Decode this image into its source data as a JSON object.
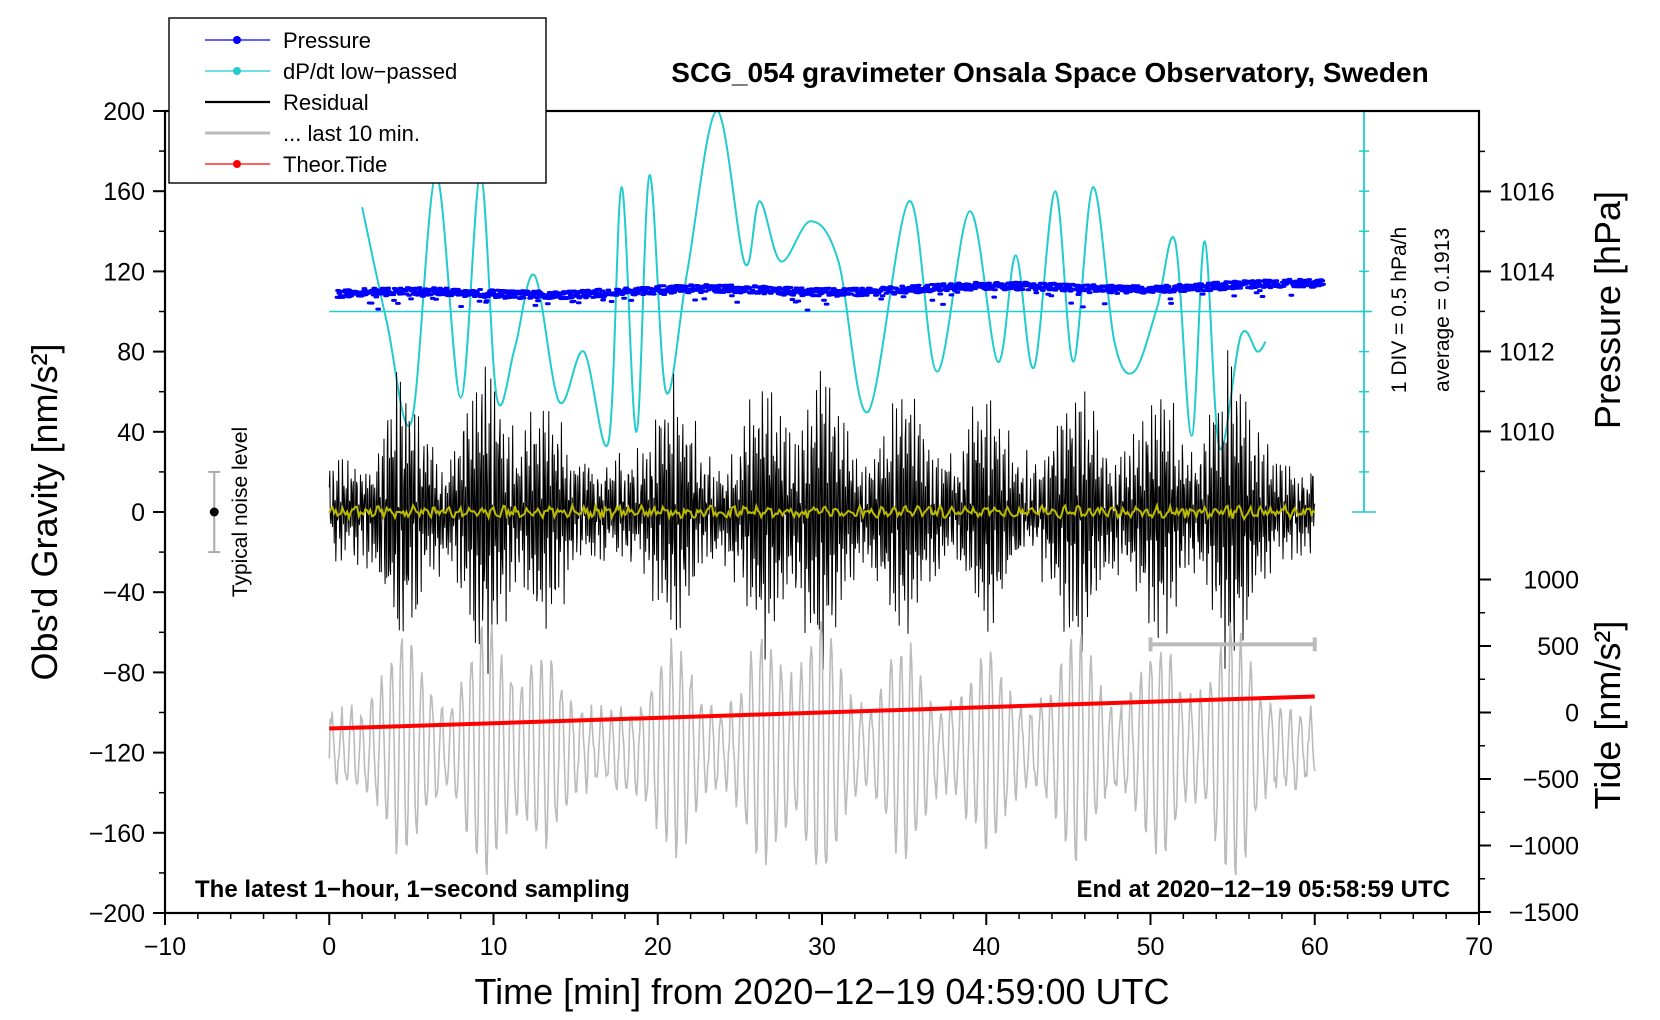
{
  "chart_data": {
    "type": "line",
    "title": "SCG_054 gravimeter Onsala Space Observatory, Sweden",
    "xlabel": "Time [min] from 2020−12−19 04:59:00 UTC",
    "ylabel_left": "Obs'd Gravity [nm/s²]",
    "ylabel_right_pressure": "Pressure [hPa]",
    "ylabel_right_tide": "Tide [nm/s²]",
    "xlim": [
      -10,
      70
    ],
    "ylim": [
      -200,
      200
    ],
    "pressure_lim": [
      1008,
      1018
    ],
    "tide_lim": [
      -1500,
      1500
    ],
    "x_ticks": [
      -10,
      0,
      10,
      20,
      30,
      40,
      50,
      60,
      70
    ],
    "x_tick_labels": [
      "−10",
      "0",
      "10",
      "20",
      "30",
      "40",
      "50",
      "60",
      "70"
    ],
    "y_ticks": [
      200,
      160,
      120,
      80,
      40,
      0,
      -40,
      -80,
      -120,
      -160,
      -200
    ],
    "y_tick_labels": [
      "200",
      "160",
      "120",
      "80",
      "40",
      "0",
      "−40",
      "−80",
      "−120",
      "−160",
      "−200"
    ],
    "pressure_ticks": [
      1016,
      1014,
      1012,
      1010
    ],
    "tide_ticks": [
      1000,
      500,
      0,
      -500,
      -1000,
      -1500
    ],
    "tide_tick_labels": [
      "1000",
      "500",
      "0",
      "−500",
      "−1000",
      "−1500"
    ],
    "legend": [
      {
        "label": "Pressure",
        "color": "#0000ff",
        "marker": true
      },
      {
        "label": "dP/dt low−passed",
        "color": "#22cccc",
        "marker": true
      },
      {
        "label": "Residual",
        "color": "#000000",
        "marker": false
      },
      {
        "label": "... last 10 min.",
        "color": "#bbbbbb",
        "marker": false
      },
      {
        "label": "Theor.Tide",
        "color": "#ff0000",
        "marker": true
      }
    ],
    "annotations": {
      "scale_div": "1 DIV = 0.5 hPa/h",
      "scale_avg": "average = 0.1913",
      "noise_label": "Typical noise level",
      "bottom_left": "The latest 1−hour, 1−second sampling",
      "bottom_right": "End at 2020−12−19 05:58:59 UTC"
    },
    "series": [
      {
        "name": "Pressure",
        "unit": "hPa",
        "mean": 1013.5,
        "x_range": [
          0.5,
          60.5
        ]
      },
      {
        "name": "dP/dt low−passed",
        "unit": "nm/s² scaled",
        "x": [
          2,
          3.5,
          5,
          6.5,
          8,
          9.2,
          10.2,
          11.3,
          12.5,
          14,
          15.5,
          17,
          17.8,
          18.7,
          19.5,
          20.5,
          21.8,
          23.6,
          25.3,
          26.2,
          27.5,
          29.3,
          31,
          32.8,
          35.3,
          37,
          39,
          40.7,
          41.8,
          42.9,
          44.2,
          45.3,
          46.5,
          47.8,
          49,
          50.4,
          51.5,
          52.5,
          53.3,
          54.2,
          55.5,
          56.5,
          57
        ],
        "values": [
          152,
          95,
          45,
          168,
          57,
          168,
          57,
          82,
          118,
          55,
          80,
          35,
          162,
          40,
          168,
          60,
          120,
          200,
          124,
          155,
          125,
          145,
          125,
          50,
          155,
          70,
          150,
          75,
          128,
          72,
          160,
          75,
          162,
          85,
          70,
          102,
          135,
          38,
          135,
          32,
          88,
          80,
          85
        ]
      },
      {
        "name": "Residual",
        "unit": "nm/s²",
        "amplitude": 50,
        "x_range": [
          0,
          60
        ]
      },
      {
        "name": "... last 10 min.",
        "unit": "nm/s²",
        "x_range": [
          50,
          60
        ],
        "baseline": -118,
        "amplitude": 45
      },
      {
        "name": "Theor.Tide",
        "unit": "nm/s²",
        "x": [
          0,
          60
        ],
        "values": [
          -108,
          -92
        ]
      }
    ]
  }
}
